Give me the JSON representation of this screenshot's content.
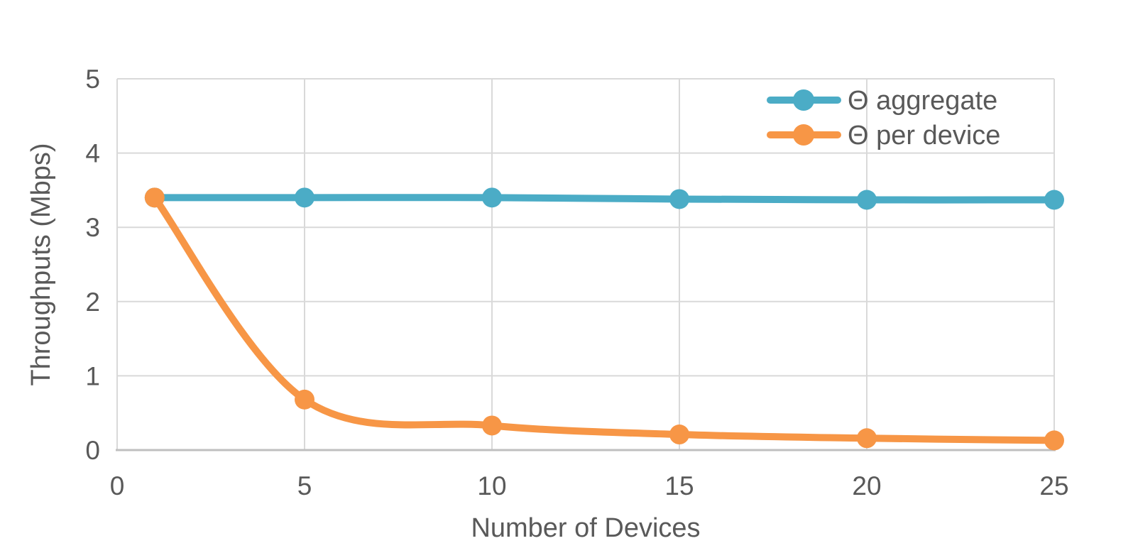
{
  "chart_data": {
    "type": "line",
    "title": "",
    "xlabel": "Number of Devices",
    "ylabel": "Throughputs (Mbps)",
    "x": [
      1,
      5,
      10,
      15,
      20,
      25
    ],
    "series": [
      {
        "name": "Θ aggregate",
        "color": "#4BACC6",
        "values": [
          3.4,
          3.4,
          3.4,
          3.38,
          3.37,
          3.37
        ]
      },
      {
        "name": "Θ per device",
        "color": "#F79646",
        "values": [
          3.4,
          0.68,
          0.33,
          0.21,
          0.16,
          0.13
        ]
      }
    ],
    "x_ticks": [
      0,
      5,
      10,
      15,
      20,
      25
    ],
    "y_ticks": [
      0,
      1,
      2,
      3,
      4,
      5
    ],
    "xlim": [
      0,
      25
    ],
    "ylim": [
      0,
      5
    ],
    "grid": true,
    "legend_position": "top-right-inside",
    "style": {
      "background": "#FFFFFF",
      "grid_color": "#D9D9D9",
      "axis_line_color": "#BFBFBF",
      "text_color": "#595959",
      "line_width": 10,
      "marker_radius": 14
    }
  }
}
